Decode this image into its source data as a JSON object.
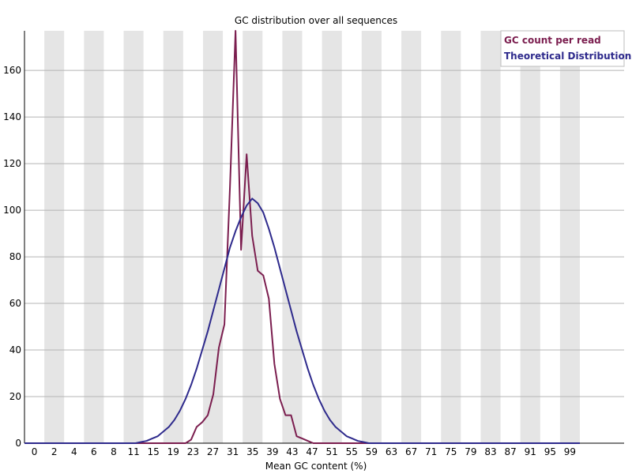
{
  "chart_data": {
    "type": "line",
    "title": "GC distribution over all sequences",
    "xlabel": "Mean GC content (%)",
    "ylabel": "",
    "xlim": [
      0,
      100
    ],
    "ylim": [
      0,
      177
    ],
    "grid": true,
    "legend_position": "top-right",
    "x_tick_labels": [
      "0",
      "2",
      "4",
      "6",
      "8",
      "11",
      "15",
      "19",
      "23",
      "27",
      "31",
      "35",
      "39",
      "43",
      "47",
      "51",
      "55",
      "59",
      "63",
      "67",
      "71",
      "75",
      "79",
      "83",
      "87",
      "91",
      "95",
      "99"
    ],
    "y_tick_labels": [
      "0",
      "20",
      "40",
      "60",
      "80",
      "100",
      "120",
      "140",
      "160"
    ],
    "x": [
      0,
      1,
      2,
      3,
      4,
      5,
      6,
      7,
      8,
      9,
      10,
      11,
      12,
      13,
      14,
      15,
      16,
      17,
      18,
      19,
      20,
      21,
      22,
      23,
      24,
      25,
      26,
      27,
      28,
      29,
      30,
      31,
      32,
      33,
      34,
      35,
      36,
      37,
      38,
      39,
      40,
      41,
      42,
      43,
      44,
      45,
      46,
      47,
      48,
      49,
      50,
      51,
      52,
      53,
      54,
      55,
      56,
      57,
      58,
      59,
      60,
      61,
      62,
      63,
      64,
      65,
      66,
      67,
      68,
      69,
      70,
      71,
      72,
      73,
      74,
      75,
      76,
      77,
      78,
      79,
      80,
      81,
      82,
      83,
      84,
      85,
      86,
      87,
      88,
      89,
      90,
      91,
      92,
      93,
      94,
      95,
      96,
      97,
      98,
      99,
      100
    ],
    "series": [
      {
        "name": "GC count per read",
        "color": "#7b1e4f",
        "values": [
          0,
          0,
          0,
          0,
          0,
          0,
          0,
          0,
          0,
          0,
          0,
          0,
          0,
          0,
          0,
          0,
          0,
          0,
          0,
          0,
          0,
          0,
          0,
          0,
          0,
          0,
          0,
          0,
          0,
          0,
          1.5,
          7,
          9,
          12,
          21,
          41,
          51,
          110,
          177,
          83,
          124,
          89,
          74,
          72,
          62,
          34,
          19,
          12,
          12,
          3,
          2,
          1,
          0,
          0,
          0,
          0,
          0,
          0,
          0,
          0,
          0,
          0,
          0,
          0,
          0,
          0,
          0,
          0,
          0,
          0,
          0,
          0,
          0,
          0,
          0,
          0,
          0,
          0,
          0,
          0,
          0,
          0,
          0,
          0,
          0,
          0,
          0,
          0,
          0,
          0,
          0,
          0,
          0,
          0,
          0,
          0,
          0,
          0,
          0,
          0,
          0
        ]
      },
      {
        "name": "Theoretical Distribution",
        "color": "#2e2a8c",
        "values": [
          0,
          0,
          0,
          0,
          0,
          0,
          0,
          0,
          0,
          0,
          0,
          0,
          0,
          0,
          0,
          0,
          0,
          0,
          0,
          0,
          0,
          0.5,
          1,
          2,
          3,
          5,
          7,
          10,
          14,
          19,
          25,
          32,
          40,
          48,
          57,
          66,
          75,
          84,
          91,
          97,
          102,
          105,
          103,
          99,
          92,
          84,
          75,
          66,
          57,
          48,
          40,
          32,
          25,
          19,
          14,
          10,
          7,
          5,
          3,
          2,
          1,
          0.5,
          0,
          0,
          0,
          0,
          0,
          0,
          0,
          0,
          0,
          0,
          0,
          0,
          0,
          0,
          0,
          0,
          0,
          0,
          0,
          0,
          0,
          0,
          0,
          0,
          0,
          0,
          0,
          0,
          0,
          0,
          0,
          0,
          0,
          0,
          0,
          0,
          0,
          0,
          0
        ]
      }
    ]
  }
}
